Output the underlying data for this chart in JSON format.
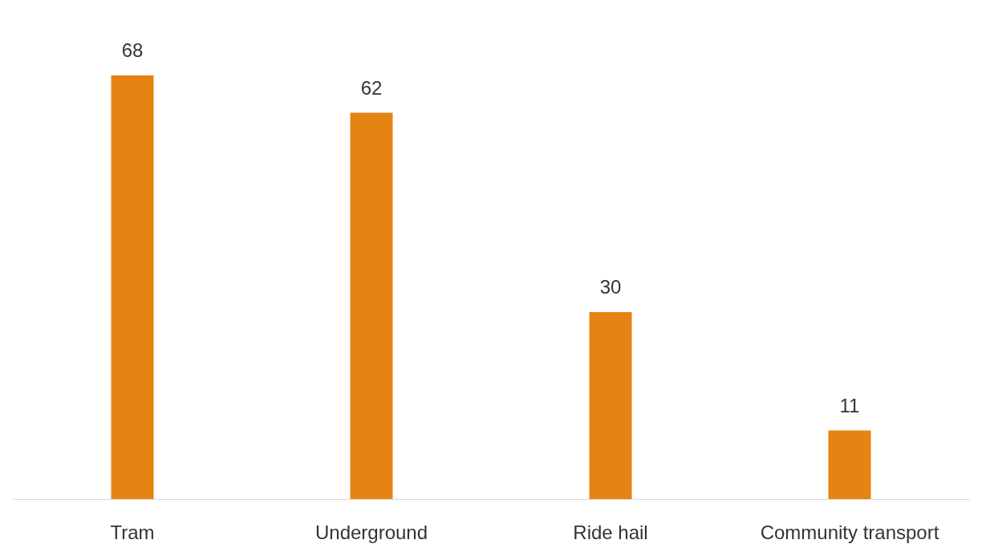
{
  "chart_data": {
    "type": "bar",
    "categories": [
      "Tram",
      "Underground",
      "Ride hail",
      "Community transport"
    ],
    "values": [
      68,
      62,
      30,
      11
    ],
    "color": "#e68413",
    "data_labels": true,
    "grid": false
  }
}
